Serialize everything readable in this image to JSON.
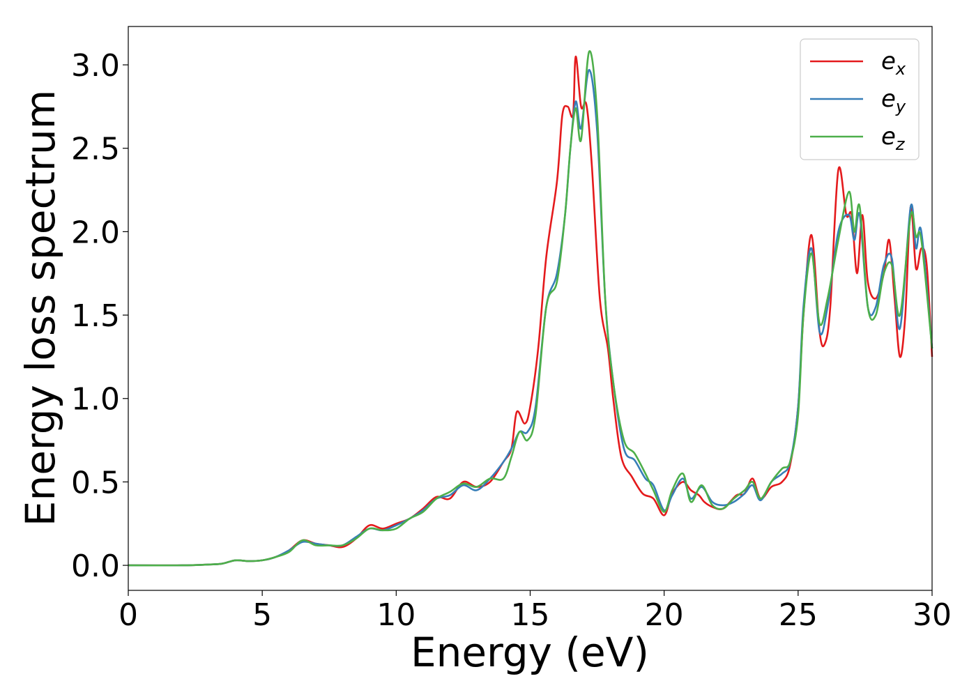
{
  "chart_data": {
    "type": "line",
    "title": "",
    "xlabel": "Energy (eV)",
    "ylabel": "Energy loss spectrum",
    "xlim": [
      0,
      30
    ],
    "ylim": [
      -0.15,
      3.23
    ],
    "xticks": [
      0,
      5,
      10,
      15,
      20,
      25,
      30
    ],
    "xtick_labels": [
      "0",
      "5",
      "10",
      "15",
      "20",
      "25",
      "30"
    ],
    "yticks": [
      0.0,
      0.5,
      1.0,
      1.5,
      2.0,
      2.5,
      3.0
    ],
    "ytick_labels": [
      "0.0",
      "0.5",
      "1.0",
      "1.5",
      "2.0",
      "2.5",
      "3.0"
    ],
    "grid": false,
    "legend_position": "top-right",
    "series": [
      {
        "name": "e_x",
        "legend_main": "e",
        "legend_sub": "x",
        "color": "#e41a1c",
        "points": [
          [
            0,
            0
          ],
          [
            2,
            0
          ],
          [
            3,
            0.005
          ],
          [
            3.5,
            0.01
          ],
          [
            4,
            0.03
          ],
          [
            4.5,
            0.025
          ],
          [
            5,
            0.03
          ],
          [
            5.5,
            0.05
          ],
          [
            6,
            0.09
          ],
          [
            6.5,
            0.15
          ],
          [
            7,
            0.13
          ],
          [
            7.5,
            0.12
          ],
          [
            8,
            0.11
          ],
          [
            8.5,
            0.16
          ],
          [
            9,
            0.24
          ],
          [
            9.5,
            0.22
          ],
          [
            10,
            0.25
          ],
          [
            10.5,
            0.28
          ],
          [
            11,
            0.34
          ],
          [
            11.5,
            0.41
          ],
          [
            12,
            0.4
          ],
          [
            12.5,
            0.5
          ],
          [
            13,
            0.47
          ],
          [
            13.5,
            0.5
          ],
          [
            14,
            0.62
          ],
          [
            14.3,
            0.7
          ],
          [
            14.5,
            0.92
          ],
          [
            14.8,
            0.85
          ],
          [
            15,
            0.95
          ],
          [
            15.3,
            1.3
          ],
          [
            15.6,
            1.85
          ],
          [
            16,
            2.3
          ],
          [
            16.2,
            2.7
          ],
          [
            16.4,
            2.75
          ],
          [
            16.6,
            2.7
          ],
          [
            16.7,
            3.05
          ],
          [
            16.9,
            2.75
          ],
          [
            17.1,
            2.76
          ],
          [
            17.3,
            2.4
          ],
          [
            17.6,
            1.6
          ],
          [
            17.9,
            1.3
          ],
          [
            18.1,
            1.0
          ],
          [
            18.4,
            0.65
          ],
          [
            18.8,
            0.53
          ],
          [
            19.2,
            0.43
          ],
          [
            19.6,
            0.4
          ],
          [
            20,
            0.3
          ],
          [
            20.3,
            0.43
          ],
          [
            20.7,
            0.5
          ],
          [
            21,
            0.45
          ],
          [
            21.3,
            0.42
          ],
          [
            21.5,
            0.38
          ],
          [
            21.8,
            0.35
          ],
          [
            22.2,
            0.34
          ],
          [
            22.7,
            0.42
          ],
          [
            23,
            0.43
          ],
          [
            23.3,
            0.52
          ],
          [
            23.6,
            0.4
          ],
          [
            24,
            0.47
          ],
          [
            24.4,
            0.5
          ],
          [
            24.7,
            0.6
          ],
          [
            25,
            0.95
          ],
          [
            25.2,
            1.5
          ],
          [
            25.5,
            1.98
          ],
          [
            25.8,
            1.4
          ],
          [
            26,
            1.33
          ],
          [
            26.2,
            1.55
          ],
          [
            26.5,
            2.37
          ],
          [
            26.8,
            2.1
          ],
          [
            27,
            2.1
          ],
          [
            27.2,
            1.75
          ],
          [
            27.4,
            2.1
          ],
          [
            27.6,
            1.7
          ],
          [
            27.9,
            1.6
          ],
          [
            28.2,
            1.75
          ],
          [
            28.4,
            1.95
          ],
          [
            28.6,
            1.6
          ],
          [
            28.8,
            1.25
          ],
          [
            29,
            1.5
          ],
          [
            29.2,
            2.15
          ],
          [
            29.4,
            1.78
          ],
          [
            29.6,
            1.9
          ],
          [
            29.8,
            1.8
          ],
          [
            30,
            1.25
          ]
        ]
      },
      {
        "name": "e_y",
        "legend_main": "e",
        "legend_sub": "y",
        "color": "#377eb8",
        "points": [
          [
            0,
            0
          ],
          [
            2,
            0
          ],
          [
            3,
            0.005
          ],
          [
            3.5,
            0.01
          ],
          [
            4,
            0.03
          ],
          [
            4.5,
            0.025
          ],
          [
            5,
            0.03
          ],
          [
            5.5,
            0.05
          ],
          [
            6,
            0.09
          ],
          [
            6.5,
            0.14
          ],
          [
            7,
            0.13
          ],
          [
            7.5,
            0.12
          ],
          [
            8,
            0.12
          ],
          [
            8.5,
            0.17
          ],
          [
            9,
            0.22
          ],
          [
            9.5,
            0.21
          ],
          [
            10,
            0.24
          ],
          [
            10.5,
            0.28
          ],
          [
            11,
            0.33
          ],
          [
            11.5,
            0.4
          ],
          [
            12,
            0.42
          ],
          [
            12.5,
            0.48
          ],
          [
            13,
            0.45
          ],
          [
            13.5,
            0.52
          ],
          [
            14,
            0.62
          ],
          [
            14.3,
            0.7
          ],
          [
            14.6,
            0.8
          ],
          [
            14.9,
            0.8
          ],
          [
            15.2,
            0.95
          ],
          [
            15.6,
            1.55
          ],
          [
            16,
            1.75
          ],
          [
            16.3,
            2.1
          ],
          [
            16.5,
            2.5
          ],
          [
            16.7,
            2.78
          ],
          [
            16.9,
            2.62
          ],
          [
            17.2,
            2.97
          ],
          [
            17.5,
            2.6
          ],
          [
            17.8,
            1.6
          ],
          [
            18.1,
            1.1
          ],
          [
            18.5,
            0.7
          ],
          [
            18.9,
            0.63
          ],
          [
            19.3,
            0.52
          ],
          [
            19.6,
            0.48
          ],
          [
            20,
            0.33
          ],
          [
            20.3,
            0.42
          ],
          [
            20.7,
            0.52
          ],
          [
            21,
            0.4
          ],
          [
            21.4,
            0.47
          ],
          [
            21.8,
            0.38
          ],
          [
            22.2,
            0.36
          ],
          [
            22.6,
            0.38
          ],
          [
            23,
            0.43
          ],
          [
            23.3,
            0.48
          ],
          [
            23.6,
            0.39
          ],
          [
            24,
            0.5
          ],
          [
            24.4,
            0.55
          ],
          [
            24.7,
            0.62
          ],
          [
            25,
            0.95
          ],
          [
            25.2,
            1.55
          ],
          [
            25.5,
            1.9
          ],
          [
            25.8,
            1.4
          ],
          [
            26.1,
            1.55
          ],
          [
            26.5,
            2.0
          ],
          [
            26.9,
            2.1
          ],
          [
            27.1,
            1.95
          ],
          [
            27.3,
            2.1
          ],
          [
            27.6,
            1.55
          ],
          [
            27.9,
            1.55
          ],
          [
            28.2,
            1.8
          ],
          [
            28.5,
            1.84
          ],
          [
            28.8,
            1.42
          ],
          [
            29.2,
            2.15
          ],
          [
            29.4,
            1.9
          ],
          [
            29.6,
            2.0
          ],
          [
            30,
            1.3
          ]
        ]
      },
      {
        "name": "e_z",
        "legend_main": "e",
        "legend_sub": "z",
        "color": "#4daf4a",
        "points": [
          [
            0,
            0
          ],
          [
            2,
            0
          ],
          [
            3,
            0.005
          ],
          [
            3.5,
            0.01
          ],
          [
            4,
            0.03
          ],
          [
            4.5,
            0.025
          ],
          [
            5,
            0.03
          ],
          [
            5.5,
            0.05
          ],
          [
            6,
            0.08
          ],
          [
            6.5,
            0.15
          ],
          [
            7,
            0.12
          ],
          [
            7.5,
            0.12
          ],
          [
            8,
            0.12
          ],
          [
            8.5,
            0.16
          ],
          [
            9,
            0.22
          ],
          [
            9.5,
            0.21
          ],
          [
            10,
            0.22
          ],
          [
            10.5,
            0.28
          ],
          [
            11,
            0.32
          ],
          [
            11.5,
            0.4
          ],
          [
            12,
            0.44
          ],
          [
            12.5,
            0.49
          ],
          [
            13,
            0.47
          ],
          [
            13.5,
            0.52
          ],
          [
            14,
            0.52
          ],
          [
            14.3,
            0.65
          ],
          [
            14.6,
            0.8
          ],
          [
            14.9,
            0.75
          ],
          [
            15.2,
            0.9
          ],
          [
            15.6,
            1.55
          ],
          [
            16,
            1.7
          ],
          [
            16.3,
            2.1
          ],
          [
            16.5,
            2.5
          ],
          [
            16.7,
            2.74
          ],
          [
            16.9,
            2.55
          ],
          [
            17.2,
            3.08
          ],
          [
            17.5,
            2.7
          ],
          [
            17.8,
            1.6
          ],
          [
            18.1,
            1.1
          ],
          [
            18.5,
            0.75
          ],
          [
            18.9,
            0.67
          ],
          [
            19.3,
            0.55
          ],
          [
            19.6,
            0.45
          ],
          [
            20,
            0.32
          ],
          [
            20.3,
            0.45
          ],
          [
            20.7,
            0.55
          ],
          [
            21,
            0.38
          ],
          [
            21.4,
            0.48
          ],
          [
            21.8,
            0.36
          ],
          [
            22.2,
            0.34
          ],
          [
            22.6,
            0.4
          ],
          [
            23,
            0.45
          ],
          [
            23.3,
            0.5
          ],
          [
            23.6,
            0.4
          ],
          [
            24,
            0.5
          ],
          [
            24.4,
            0.58
          ],
          [
            24.7,
            0.62
          ],
          [
            25,
            0.9
          ],
          [
            25.2,
            1.5
          ],
          [
            25.5,
            1.87
          ],
          [
            25.8,
            1.45
          ],
          [
            26.1,
            1.6
          ],
          [
            26.5,
            1.95
          ],
          [
            26.9,
            2.24
          ],
          [
            27.1,
            2.0
          ],
          [
            27.3,
            2.15
          ],
          [
            27.6,
            1.55
          ],
          [
            27.9,
            1.5
          ],
          [
            28.2,
            1.75
          ],
          [
            28.5,
            1.8
          ],
          [
            28.8,
            1.5
          ],
          [
            29.2,
            2.1
          ],
          [
            29.4,
            1.97
          ],
          [
            29.6,
            1.95
          ],
          [
            30,
            1.3
          ]
        ]
      }
    ]
  }
}
